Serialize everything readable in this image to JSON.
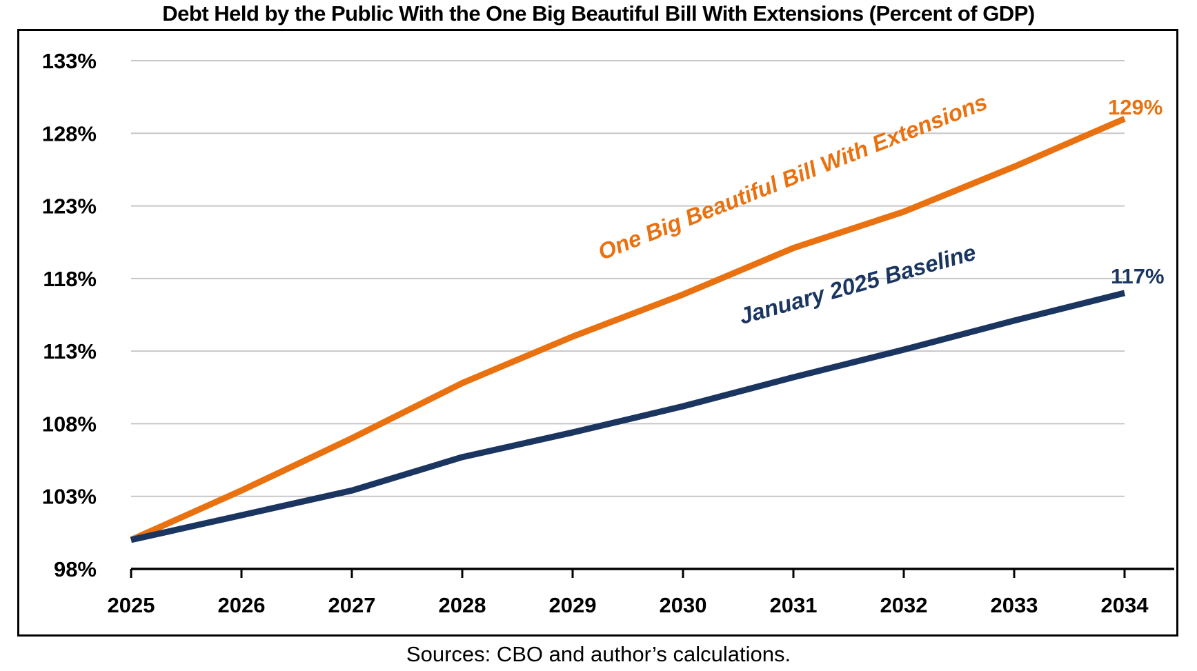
{
  "title": "Debt Held by the Public With the One Big Beautiful Bill With Extensions (Percent of GDP)",
  "source": "Sources: CBO and author’s calculations.",
  "chart_data": {
    "type": "line",
    "x": [
      2025,
      2026,
      2027,
      2028,
      2029,
      2030,
      2031,
      2032,
      2033,
      2034
    ],
    "series": [
      {
        "name": "One Big Beautiful Bill With Extensions",
        "color": "#E9710F",
        "values": [
          100.0,
          103.4,
          107.0,
          110.8,
          114.0,
          116.9,
          120.1,
          122.6,
          125.7,
          129.0
        ],
        "end_label": "129%"
      },
      {
        "name": "January 2025 Baseline",
        "color": "#1A3560",
        "values": [
          100.0,
          101.7,
          103.4,
          105.7,
          107.4,
          109.2,
          111.2,
          113.1,
          115.1,
          117.0
        ],
        "end_label": "117%"
      }
    ],
    "ylim": [
      98,
      133
    ],
    "ytick_values": [
      98,
      103,
      108,
      113,
      118,
      123,
      128,
      133
    ],
    "ytick_labels": [
      "98%",
      "103%",
      "108%",
      "113%",
      "118%",
      "123%",
      "128%",
      "133%"
    ],
    "xtick_labels": [
      "2025",
      "2026",
      "2027",
      "2028",
      "2029",
      "2030",
      "2031",
      "2032",
      "2033",
      "2034"
    ],
    "xlabel": "",
    "ylabel": "",
    "grid": "horizontal",
    "grid_color": "#C7C7C7",
    "legend_position": "labels-on-lines"
  }
}
